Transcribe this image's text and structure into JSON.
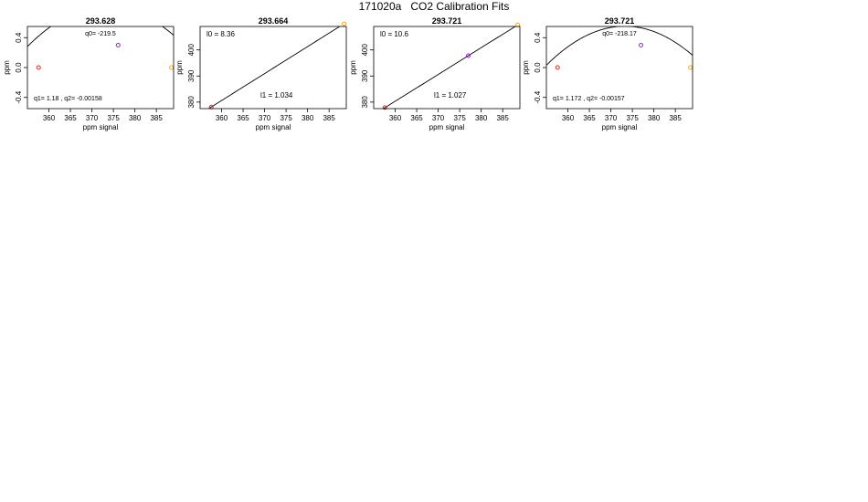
{
  "page_title": "171020a   CO2 Calibration Fits",
  "colors": {
    "low_point": "#e0281c",
    "mid_point": "#a020f0",
    "high_point": "#ffa500",
    "fit_line": "#000000"
  },
  "chart_data": [
    {
      "type": "scatter",
      "fit": "quadratic",
      "title": "293.628",
      "xlabel": "ppm signal",
      "ylabel": "ppm",
      "xlim": [
        355,
        389
      ],
      "ylim": [
        -0.55,
        0.55
      ],
      "x_ticks": [
        "360",
        "365",
        "370",
        "375",
        "380",
        "385"
      ],
      "y_ticks": [
        "-0.4",
        "0.0",
        "0.4"
      ],
      "x_tick_values": [
        360,
        365,
        370,
        375,
        380,
        385
      ],
      "y_tick_values": [
        -0.4,
        0,
        0.4
      ],
      "points": [
        {
          "x": 357.6,
          "y": 0.0
        },
        {
          "x": 376.1,
          "y": 0.3
        },
        {
          "x": 388.5,
          "y": 0.0
        }
      ],
      "curve": {
        "kind": "quadratic",
        "a0": -219.5,
        "a1": 1.18,
        "a2": -0.00158
      },
      "annotations": [
        "q0= -219.5",
        "q1= 1.18 ,  q2= -0.00158"
      ]
    },
    {
      "type": "scatter",
      "fit": "linear",
      "title": "293.664",
      "xlabel": "ppm signal",
      "ylabel": "ppm",
      "xlim": [
        355,
        389
      ],
      "ylim": [
        377.5,
        409
      ],
      "x_ticks": [
        "360",
        "365",
        "370",
        "375",
        "380",
        "385"
      ],
      "y_ticks": [
        "380",
        "390",
        "400"
      ],
      "x_tick_values": [
        360,
        365,
        370,
        375,
        380,
        385
      ],
      "y_tick_values": [
        380,
        390,
        400
      ],
      "points": [
        {
          "x": 357.6,
          "y": 378.1
        },
        {
          "x": 388.5,
          "y": 410.0
        }
      ],
      "curve": {
        "kind": "linear",
        "a0": 8.36,
        "a1": 1.034
      },
      "annotations": [
        "l0 =  8.36",
        "l1 =  1.034"
      ]
    },
    {
      "type": "scatter",
      "fit": "linear",
      "title": "293.721",
      "xlabel": "ppm signal",
      "ylabel": "ppm",
      "xlim": [
        355,
        389
      ],
      "ylim": [
        377.5,
        409
      ],
      "x_ticks": [
        "360",
        "365",
        "370",
        "375",
        "380",
        "385"
      ],
      "y_ticks": [
        "380",
        "390",
        "400"
      ],
      "x_tick_values": [
        360,
        365,
        370,
        375,
        380,
        385
      ],
      "y_tick_values": [
        380,
        390,
        400
      ],
      "points": [
        {
          "x": 357.6,
          "y": 377.9
        },
        {
          "x": 377.0,
          "y": 397.8
        },
        {
          "x": 388.5,
          "y": 409.6
        }
      ],
      "curve": {
        "kind": "linear",
        "a0": 10.6,
        "a1": 1.027
      },
      "annotations": [
        "l0 =  10.6",
        "l1 =  1.027"
      ]
    },
    {
      "type": "scatter",
      "fit": "quadratic",
      "title": "293.721",
      "xlabel": "ppm signal",
      "ylabel": "ppm",
      "xlim": [
        355,
        389
      ],
      "ylim": [
        -0.55,
        0.55
      ],
      "x_ticks": [
        "360",
        "365",
        "370",
        "375",
        "380",
        "385"
      ],
      "y_ticks": [
        "-0.4",
        "0.0",
        "0.4"
      ],
      "x_tick_values": [
        360,
        365,
        370,
        375,
        380,
        385
      ],
      "y_tick_values": [
        -0.4,
        0,
        0.4
      ],
      "points": [
        {
          "x": 357.6,
          "y": 0.0
        },
        {
          "x": 377.0,
          "y": 0.3
        },
        {
          "x": 388.5,
          "y": 0.0
        }
      ],
      "curve": {
        "kind": "quadratic",
        "a0": -218.17,
        "a1": 1.172,
        "a2": -0.00157
      },
      "annotations": [
        "q0= -218.17",
        "q1= 1.172 ,  q2= -0.00157"
      ]
    }
  ]
}
